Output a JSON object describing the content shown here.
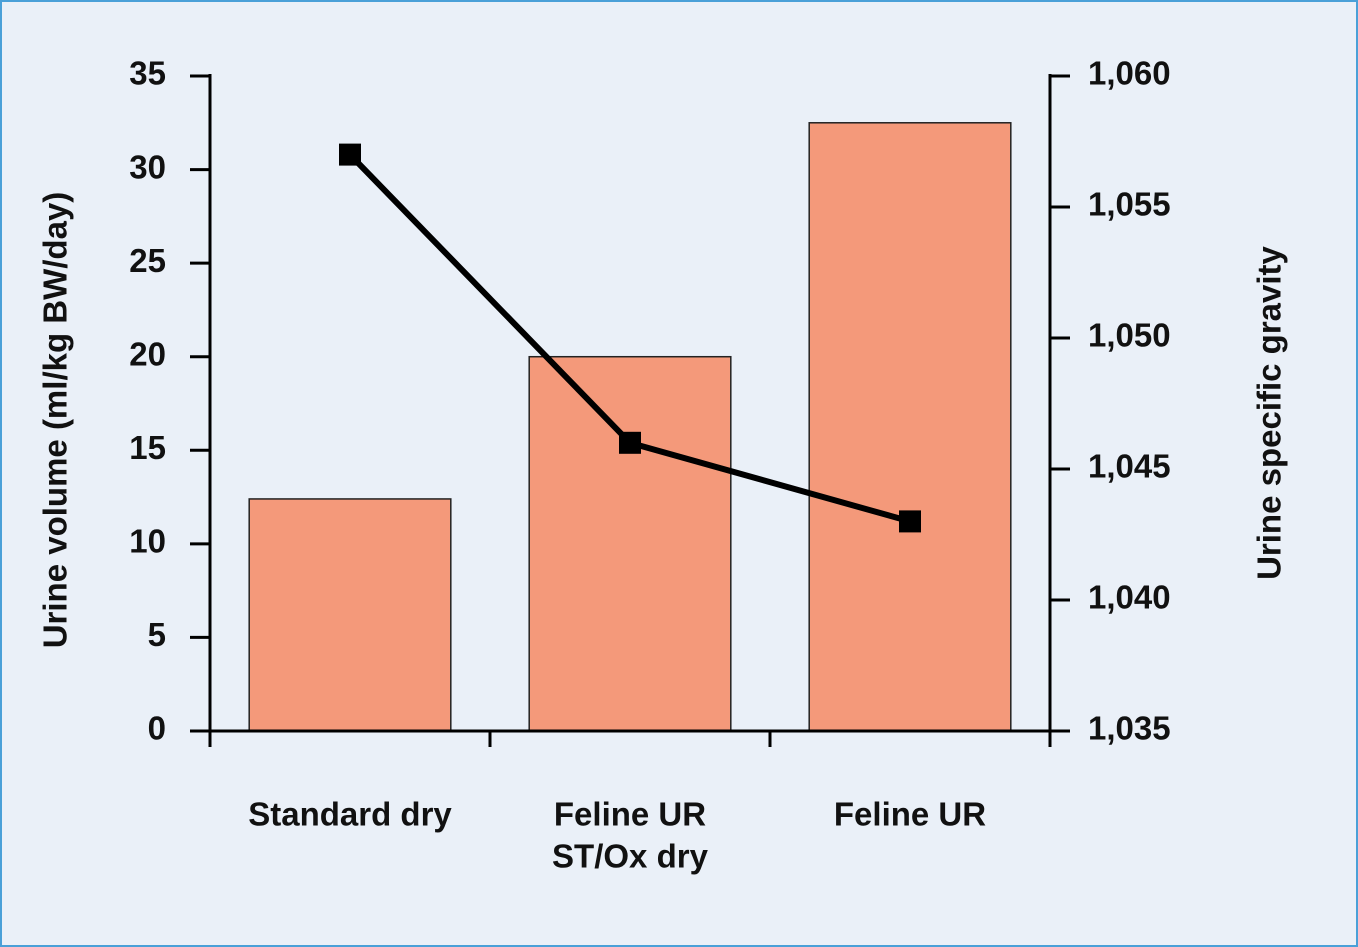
{
  "chart_data": {
    "type": "bar",
    "ylabel": "Urine volume (ml/kg BW/day)",
    "y2label": "Urine specific gravity",
    "categories": [
      [
        "Standard dry"
      ],
      [
        "Feline UR",
        "ST/Ox dry"
      ],
      [
        "Feline UR"
      ]
    ],
    "series": [
      {
        "type": "bar",
        "color": "#f4997a",
        "values": [
          12.4,
          20,
          32.5
        ]
      },
      {
        "type": "line",
        "axis": "y2",
        "color": "#000000",
        "values": [
          1.057,
          1.046,
          1.043
        ]
      }
    ],
    "ylim": [
      0,
      35
    ],
    "yticks": [
      0,
      5,
      10,
      15,
      20,
      25,
      30,
      35
    ],
    "y2lim": [
      1.035,
      1.06
    ],
    "y2ticks": [
      {
        "value": 1.035,
        "label": "1,035"
      },
      {
        "value": 1.04,
        "label": "1,040"
      },
      {
        "value": 1.045,
        "label": "1,045"
      },
      {
        "value": 1.05,
        "label": "1,050"
      },
      {
        "value": 1.055,
        "label": "1,055"
      },
      {
        "value": 1.06,
        "label": "1,060"
      }
    ]
  }
}
